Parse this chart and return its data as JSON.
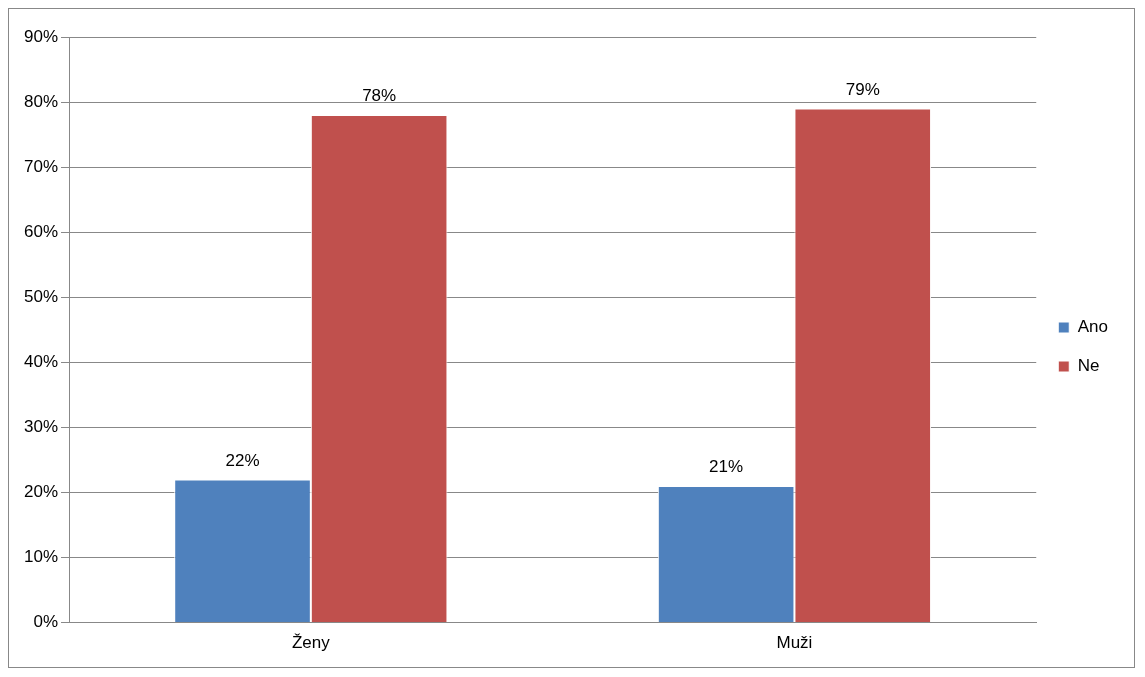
{
  "chart_data": {
    "type": "bar",
    "categories": [
      "Ženy",
      "Muži"
    ],
    "series": [
      {
        "name": "Ano",
        "color": "#4f81bd",
        "values": [
          22,
          21
        ],
        "value_labels": [
          "22%",
          "21%"
        ]
      },
      {
        "name": "Ne",
        "color": "#c0504d",
        "values": [
          78,
          79
        ],
        "value_labels": [
          "78%",
          "79%"
        ]
      }
    ],
    "ylim": [
      0,
      90
    ],
    "yticks": [
      {
        "value": 0,
        "label": "0%"
      },
      {
        "value": 10,
        "label": "10%"
      },
      {
        "value": 20,
        "label": "20%"
      },
      {
        "value": 30,
        "label": "30%"
      },
      {
        "value": 40,
        "label": "40%"
      },
      {
        "value": 50,
        "label": "50%"
      },
      {
        "value": 60,
        "label": "60%"
      },
      {
        "value": 70,
        "label": "70%"
      },
      {
        "value": 80,
        "label": "80%"
      },
      {
        "value": 90,
        "label": "90%"
      }
    ],
    "grid": "y",
    "legend": "right"
  }
}
